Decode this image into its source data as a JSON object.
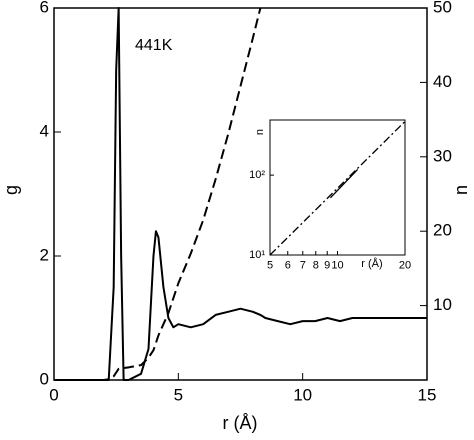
{
  "chart_data": [
    {
      "type": "line",
      "annotation": "441K",
      "xlabel": "r (Å)",
      "ylabel": "g",
      "y2label": "n",
      "x": [
        0,
        1,
        2,
        2.2,
        2.4,
        2.5,
        2.6,
        2.7,
        2.8,
        3,
        3.5,
        3.8,
        4,
        4.1,
        4.2,
        4.4,
        4.6,
        4.8,
        5,
        5.5,
        6,
        6.5,
        7,
        7.5,
        8,
        8.3,
        8.5,
        9,
        9.5,
        10,
        10.5,
        11,
        11.5,
        12,
        12.5,
        13,
        13.5,
        14,
        14.5,
        15
      ],
      "series": [
        {
          "color": "#000000",
          "style": "solid",
          "values": [
            0,
            0,
            0,
            0,
            1.5,
            5,
            6,
            2,
            0,
            0,
            0.1,
            0.5,
            2.0,
            2.4,
            2.3,
            1.5,
            1.0,
            0.85,
            0.9,
            0.85,
            0.9,
            1.05,
            1.1,
            1.15,
            1.1,
            1.05,
            1.0,
            0.95,
            0.9,
            0.95,
            0.95,
            1.0,
            0.95,
            1.0,
            1.0,
            1.0,
            1.0,
            1.0,
            1.0,
            1.0
          ]
        },
        {
          "color": "#000000",
          "style": "dashed",
          "axis": "y2",
          "values": [
            0,
            0,
            0,
            0.1,
            0.5,
            1,
            1.5,
            1.6,
            1.6,
            1.7,
            2,
            3,
            4,
            5,
            6,
            7.5,
            9,
            11,
            13,
            17,
            21.5,
            27,
            33,
            39.5,
            46,
            50,
            null,
            null,
            null,
            null,
            null,
            null,
            null,
            null,
            null,
            null,
            null,
            null,
            null,
            null
          ]
        }
      ],
      "xlim": [
        0,
        15
      ],
      "xticks": [
        0,
        5,
        10,
        15
      ],
      "ylim": [
        0,
        6
      ],
      "yticks": [
        0,
        2,
        4,
        6
      ],
      "y2lim": [
        0,
        50
      ],
      "y2ticks": [
        10,
        20,
        30,
        40,
        50
      ]
    },
    {
      "type": "line",
      "xlabel": "r (Å)",
      "ylabel": "n",
      "xscale": "log",
      "yscale": "log",
      "series": [
        {
          "color": "#000000",
          "style": "dashdot",
          "x": [
            5,
            20
          ],
          "values": [
            10,
            470
          ]
        },
        {
          "color": "#000000",
          "style": "solid",
          "x": [
            9.3,
            12.3
          ],
          "values": [
            52,
            118
          ]
        }
      ],
      "xlim": [
        5,
        20
      ],
      "xticks": [
        5,
        6,
        7,
        8,
        9,
        10,
        20
      ],
      "ylim": [
        10,
        490
      ],
      "yticks": [
        {
          "value": 10,
          "label": "10¹"
        },
        {
          "value": 100,
          "label": "10²"
        }
      ]
    }
  ]
}
